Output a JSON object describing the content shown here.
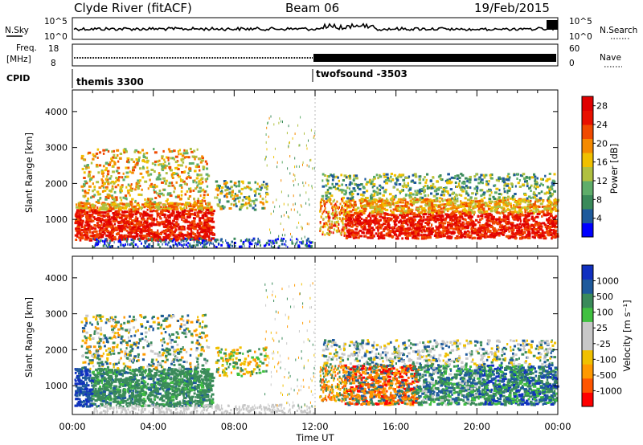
{
  "header": {
    "station": "Clyde River (fitACF)",
    "beam": "Beam 06",
    "date": "19/Feb/2015"
  },
  "panels": {
    "nsky": {
      "left_label": "N.Sky",
      "right_label": "N.Search",
      "left_ticks": [
        "10^5",
        "10^0"
      ],
      "right_ticks": [
        "10^5",
        "10^0"
      ]
    },
    "freq": {
      "left_label_1": "Freq.",
      "left_label_2": "[MHz]",
      "right_label": "Nave",
      "left_ticks": [
        "18",
        "8"
      ],
      "right_ticks": [
        "60",
        "0"
      ]
    },
    "cpid": {
      "label": "CPID",
      "programs": [
        "themis 3300",
        "twofsound -3503"
      ]
    }
  },
  "colors": {
    "power": [
      "#0000ff",
      "#1e5a9c",
      "#3a8a5a",
      "#5fad6a",
      "#b0c040",
      "#f0c000",
      "#f58a00",
      "#f04a00",
      "#e81000",
      "#e00000"
    ],
    "velocity": [
      "#ff0000",
      "#ff5500",
      "#ff9900",
      "#f0c000",
      "#c8c8c8",
      "#c8c8c8",
      "#40c040",
      "#3a8a5a",
      "#1e5a9c",
      "#1030c0"
    ]
  },
  "chart_data": [
    {
      "type": "heatmap",
      "name": "Power",
      "xlabel": "",
      "ylabel": "Slant Range [km]",
      "x_ticks": [
        "00:00",
        "04:00",
        "08:00",
        "12:00",
        "16:00",
        "20:00",
        "00:00"
      ],
      "y_ticks": [
        1000,
        2000,
        3000,
        4000
      ],
      "ylim": [
        200,
        4600
      ],
      "colorbar_label": "Power [dB]",
      "colorbar_ticks": [
        4,
        8,
        12,
        16,
        20,
        24,
        28
      ],
      "colorbar_range": [
        0,
        30
      ]
    },
    {
      "type": "heatmap",
      "name": "Velocity",
      "xlabel": "Time UT",
      "ylabel": "Slant Range [km]",
      "x_ticks": [
        "00:00",
        "04:00",
        "08:00",
        "12:00",
        "16:00",
        "20:00",
        "00:00"
      ],
      "y_ticks": [
        1000,
        2000,
        3000,
        4000
      ],
      "ylim": [
        200,
        4600
      ],
      "colorbar_label": "Velocity [m s⁻¹]",
      "colorbar_ticks": [
        1000,
        500,
        100,
        25,
        -25,
        -100,
        -500,
        -1000
      ]
    }
  ]
}
